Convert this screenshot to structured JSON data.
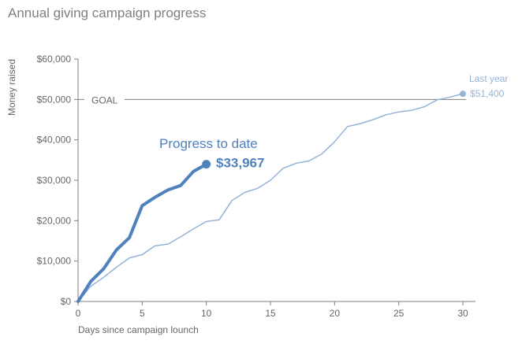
{
  "title": "Annual giving campaign progress",
  "colors": {
    "current": "#4f81bd",
    "last_year": "#95b3d7",
    "goal": "#7f7f7f",
    "axis": "#7f7f7f"
  },
  "chart_data": {
    "type": "line",
    "title": "Annual giving campaign progress",
    "xlabel": "Days since campaign lounch",
    "ylabel": "Money raised",
    "xlim": [
      0,
      30
    ],
    "ylim": [
      0,
      60000
    ],
    "x_ticks": [
      0,
      5,
      10,
      15,
      20,
      25,
      30
    ],
    "y_ticks": [
      0,
      10000,
      20000,
      30000,
      40000,
      50000,
      60000
    ],
    "y_tick_labels": [
      "$0",
      "$10,000",
      "$20,000",
      "$30,000",
      "$40,000",
      "$50,000",
      "$60,000"
    ],
    "grid": false,
    "goal": {
      "label": "GOAL",
      "value": 50000
    },
    "series": [
      {
        "key": "last_year",
        "name": "Last year",
        "end_label": "$51,400",
        "x": [
          0,
          1,
          2,
          3,
          4,
          5,
          6,
          7,
          8,
          9,
          10,
          11,
          12,
          13,
          14,
          15,
          16,
          17,
          18,
          19,
          20,
          21,
          22,
          23,
          24,
          25,
          26,
          27,
          28,
          29,
          30
        ],
        "y": [
          0,
          3800,
          6000,
          8500,
          10800,
          11600,
          13800,
          14200,
          16000,
          18000,
          19800,
          20200,
          25000,
          27000,
          28000,
          30000,
          33000,
          34200,
          34800,
          36500,
          39500,
          43300,
          44000,
          45000,
          46200,
          46900,
          47300,
          48200,
          49900,
          50600,
          51400
        ]
      },
      {
        "key": "current",
        "name": "Progress to date",
        "end_label": "$33,967",
        "x": [
          0,
          1,
          2,
          3,
          4,
          5,
          6,
          7,
          8,
          9,
          10
        ],
        "y": [
          0,
          5000,
          8100,
          12800,
          15800,
          23700,
          25800,
          27600,
          28700,
          32200,
          33967
        ]
      }
    ]
  }
}
